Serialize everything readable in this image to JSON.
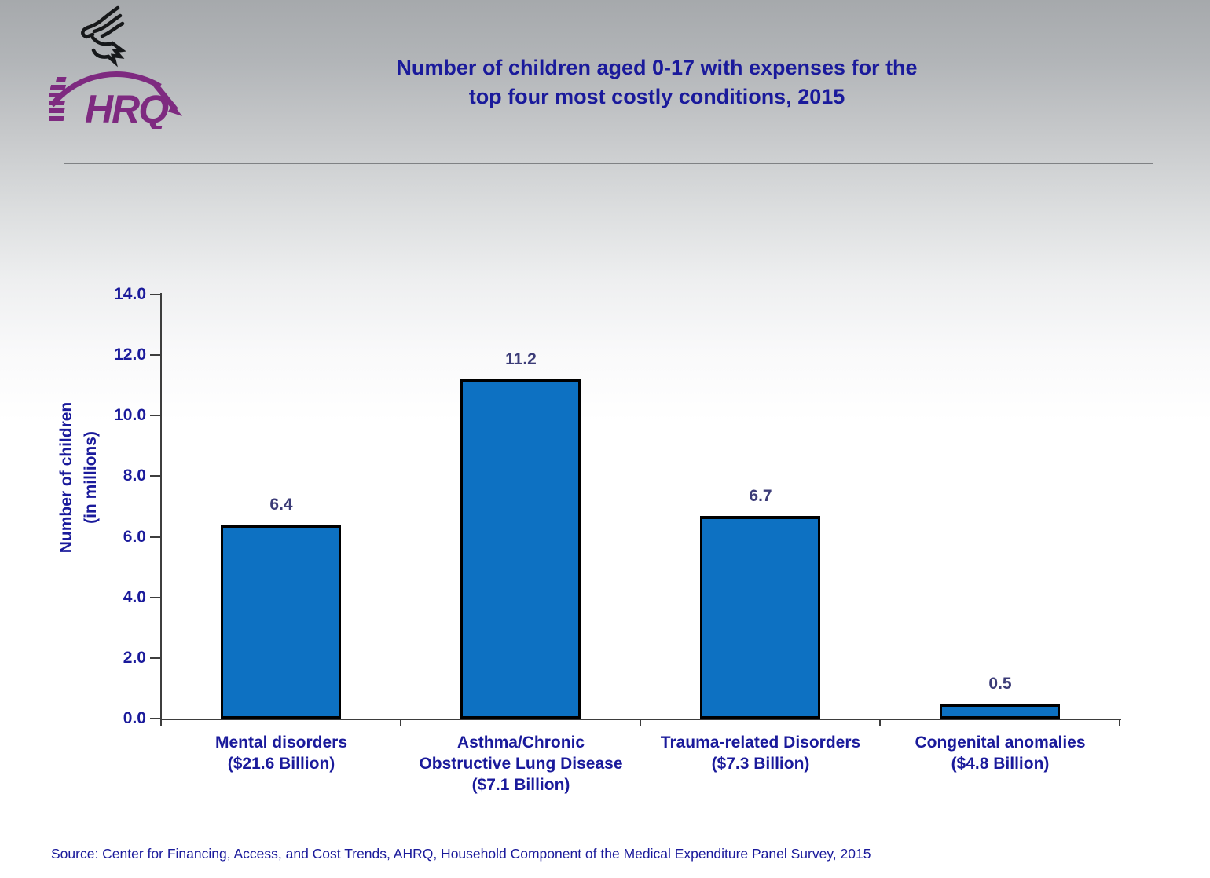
{
  "header": {
    "title_line1": "Number of children aged 0-17 with expenses for the",
    "title_line2": "top four most costly conditions, 2015",
    "logo_text": "AHRQ"
  },
  "footer": {
    "source": "Source: Center for Financing, Access, and Cost Trends, AHRQ, Household Component of the Medical Expenditure Panel Survey, 2015"
  },
  "chart_data": {
    "type": "bar",
    "title": "Number of children aged 0-17 with expenses for the top four most costly conditions, 2015",
    "categories": [
      "Mental disorders ($21.6 Billion)",
      "Asthma/Chronic Obstructive Lung Disease ($7.1 Billion)",
      "Trauma-related Disorders ($7.3 Billion)",
      "Congenital anomalies ($4.8 Billion)"
    ],
    "category_label_lines": [
      [
        "Mental disorders",
        "($21.6 Billion)"
      ],
      [
        "Asthma/Chronic",
        "Obstructive Lung Disease",
        "($7.1 Billion)"
      ],
      [
        "Trauma-related Disorders",
        "($7.3 Billion)"
      ],
      [
        "Congenital anomalies",
        "($4.8 Billion)"
      ]
    ],
    "values": [
      6.4,
      11.2,
      6.7,
      0.5
    ],
    "value_labels": [
      "6.4",
      "11.2",
      "6.7",
      "0.5"
    ],
    "ylabel_line1": "Number of children",
    "ylabel_line2": "(in millions)",
    "ylim": [
      0,
      14
    ],
    "ytick_step": 2,
    "yticks": [
      "14.0",
      "12.0",
      "10.0",
      "8.0",
      "6.0",
      "4.0",
      "2.0",
      "0.0"
    ],
    "grid": false,
    "legend": null,
    "colors": {
      "bar_fill": "#0d71c2",
      "bar_border": "#000000",
      "axis": "#3d3d3d",
      "heading_text": "#1a1a9b",
      "value_text": "#3c3c78",
      "logo_purple": "#7e2a80"
    }
  }
}
